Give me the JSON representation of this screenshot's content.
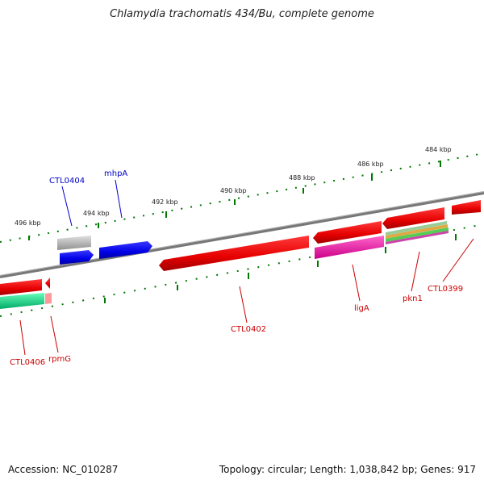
{
  "title": "Chlamydia trachomatis 434/Bu, complete genome",
  "footer": {
    "accession": "Accession: NC_010287",
    "summary": "Topology: circular; Length: 1,038,842 bp; Genes: 917"
  },
  "scale": [
    "496 kbp",
    "494 kbp",
    "492 kbp",
    "490 kbp",
    "488 kbp",
    "486 kbp",
    "484 kbp"
  ],
  "genes": {
    "ctl0404": "CTL0404",
    "mhpA": "mhpA",
    "ctl0402": "CTL0402",
    "ligA": "ligA",
    "pkn1": "pkn1",
    "ctl0399": "CTL0399",
    "ctl0406": "CTL0406",
    "rpmG": "rpmG"
  },
  "colors": {
    "forward": "#0000ee",
    "reverse": "#ee0000",
    "backbone": "#777777",
    "ticks": "#007700",
    "label_red": "#cc0000",
    "label_blue": "#0000cc"
  }
}
